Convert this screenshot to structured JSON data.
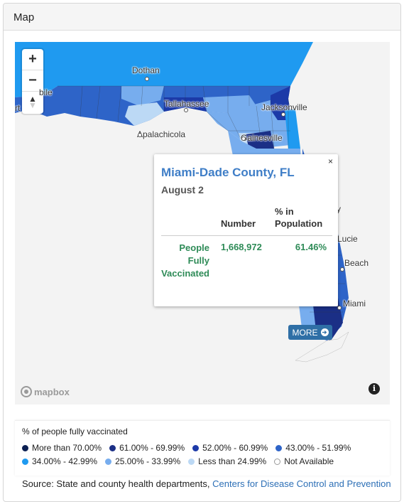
{
  "panel": {
    "title": "Map"
  },
  "map": {
    "zoom_in_label": "+",
    "zoom_out_label": "−",
    "compass_label": "▲",
    "cities": [
      {
        "name": "Dothan"
      },
      {
        "name": "bile"
      },
      {
        "name": "rt"
      },
      {
        "name": "Tallahassee"
      },
      {
        "name": "Jacksonville"
      },
      {
        "name": "Apalachicola"
      },
      {
        "name": "Gainesville"
      },
      {
        "name": "y"
      },
      {
        "name": "Lucie"
      },
      {
        "name": "Beach"
      },
      {
        "name": "Miami"
      }
    ],
    "attribution_logo": "mapbox",
    "info_label": "i",
    "fill_colors": {
      "more_than_70": "#0b1f52",
      "61_to_70": "#1b2f86",
      "52_to_61": "#1c3aa8",
      "43_to_52": "#2e64c8",
      "34_to_43": "#1f9af0",
      "25_to_34": "#77adee",
      "lt_25": "#bcd9f5",
      "na": "#ffffff"
    }
  },
  "popup": {
    "close_label": "×",
    "title": "Miami-Dade County, FL",
    "date": "August 2",
    "col_number": "Number",
    "col_pct_line1": "% in",
    "col_pct_line2": "Population",
    "row_label_line1": "People",
    "row_label_line2": "Fully",
    "row_label_line3": "Vaccinated",
    "number": "1,668,972",
    "percent": "61.46%",
    "more_label": "MORE",
    "more_icon": "➔"
  },
  "legend": {
    "title": "% of people fully vaccinated",
    "items": [
      {
        "label": "More than 70.00%",
        "color": "#0b1f52"
      },
      {
        "label": "61.00% - 69.99%",
        "color": "#1b2f86"
      },
      {
        "label": "52.00% - 60.99%",
        "color": "#1c3aa8"
      },
      {
        "label": "43.00% - 51.99%",
        "color": "#2e64c8"
      },
      {
        "label": "34.00% - 42.99%",
        "color": "#1f9af0"
      },
      {
        "label": "25.00% - 33.99%",
        "color": "#77adee"
      },
      {
        "label": "Less than 24.99%",
        "color": "#bcd9f5"
      },
      {
        "label": "Not Available",
        "color": "#ffffff"
      }
    ]
  },
  "source": {
    "prefix": "Source: State and county health departments, ",
    "link": "Centers for Disease Control and Prevention"
  }
}
